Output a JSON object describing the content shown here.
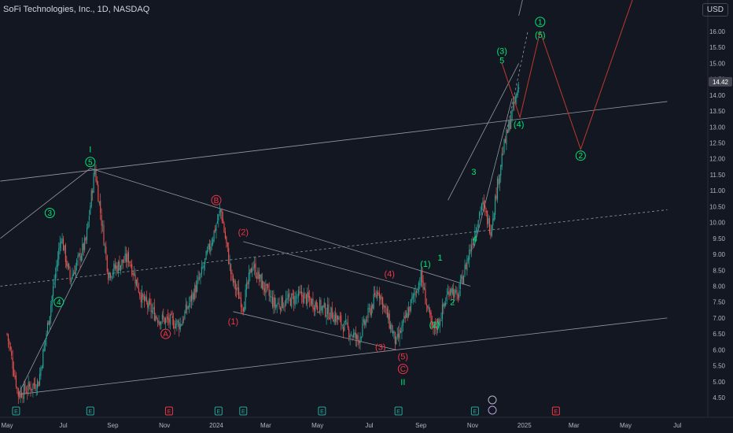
{
  "header": {
    "title": "SoFi Technologies, Inc., 1D, NASDAQ",
    "currency": "USD"
  },
  "colors": {
    "bg": "#131722",
    "up": "#26a69a",
    "down": "#ef5350",
    "green_label": "#00e676",
    "red_label": "#f23645",
    "line": "#9598a1"
  },
  "chart_data": {
    "type": "candlestick",
    "ylim": [
      4.5,
      16.5
    ],
    "yticks": [
      "4.50",
      "5.00",
      "5.50",
      "6.00",
      "6.50",
      "7.00",
      "7.50",
      "8.00",
      "8.50",
      "9.00",
      "9.50",
      "10.00",
      "10.50",
      "11.00",
      "11.50",
      "12.00",
      "12.50",
      "13.00",
      "13.50",
      "14.00",
      "14.50",
      "15.00",
      "15.50",
      "16.00"
    ],
    "yticks_num": [
      4.5,
      5,
      5.5,
      6,
      6.5,
      7,
      7.5,
      8,
      8.5,
      9,
      9.5,
      10,
      10.5,
      11,
      11.5,
      12,
      12.5,
      13,
      13.5,
      14,
      14.5,
      15,
      15.5,
      16
    ],
    "xticks": [
      "May",
      "Jul",
      "Sep",
      "Nov",
      "2024",
      "Mar",
      "May",
      "Jul",
      "Sep",
      "Nov",
      "2025",
      "Mar",
      "May",
      "Jul"
    ],
    "xticks_idx": [
      0,
      50,
      94,
      140,
      186,
      230,
      276,
      322,
      368,
      414,
      460,
      504,
      550,
      596
    ],
    "last_price": "14.42",
    "anchors": [
      [
        0,
        6.5
      ],
      [
        10,
        4.6
      ],
      [
        28,
        5.0
      ],
      [
        38,
        7.2
      ],
      [
        48,
        9.6
      ],
      [
        56,
        8.2
      ],
      [
        70,
        9.4
      ],
      [
        78,
        11.7
      ],
      [
        90,
        8.4
      ],
      [
        108,
        8.9
      ],
      [
        120,
        7.6
      ],
      [
        134,
        7.0
      ],
      [
        154,
        6.8
      ],
      [
        172,
        8.3
      ],
      [
        190,
        10.4
      ],
      [
        200,
        8.2
      ],
      [
        210,
        7.4
      ],
      [
        218,
        8.7
      ],
      [
        226,
        8.1
      ],
      [
        238,
        7.4
      ],
      [
        262,
        7.7
      ],
      [
        290,
        7.1
      ],
      [
        312,
        6.3
      ],
      [
        330,
        7.9
      ],
      [
        346,
        6.2
      ],
      [
        368,
        8.3
      ],
      [
        378,
        6.6
      ],
      [
        384,
        6.9
      ],
      [
        394,
        8.0
      ],
      [
        400,
        7.6
      ],
      [
        412,
        9.2
      ],
      [
        422,
        10.6
      ],
      [
        430,
        9.8
      ],
      [
        440,
        12.1
      ],
      [
        448,
        13.3
      ],
      [
        456,
        14.42
      ]
    ]
  },
  "wave_labels": [
    {
      "text": "I",
      "color": "green",
      "style": "plain",
      "i": 74,
      "p": 12.3
    },
    {
      "text": "5",
      "color": "green",
      "style": "circle",
      "i": 74,
      "p": 11.9
    },
    {
      "text": "3",
      "color": "green",
      "style": "circle",
      "i": 38,
      "p": 10.3
    },
    {
      "text": "4",
      "color": "green",
      "style": "circle",
      "i": 46,
      "p": 7.5
    },
    {
      "text": "B",
      "color": "red",
      "style": "circle",
      "i": 186,
      "p": 10.7
    },
    {
      "text": "(2)",
      "color": "red",
      "style": "plain",
      "i": 210,
      "p": 9.7
    },
    {
      "text": "A",
      "color": "red",
      "style": "circle",
      "i": 141,
      "p": 6.5
    },
    {
      "text": "(1)",
      "color": "red",
      "style": "plain",
      "i": 201,
      "p": 6.9
    },
    {
      "text": "(4)",
      "color": "red",
      "style": "plain",
      "i": 340,
      "p": 8.4
    },
    {
      "text": "(3)",
      "color": "red",
      "style": "plain",
      "i": 332,
      "p": 6.1
    },
    {
      "text": "(5)",
      "color": "red",
      "style": "plain",
      "i": 352,
      "p": 5.8
    },
    {
      "text": "C",
      "color": "red",
      "style": "circle",
      "i": 352,
      "p": 5.4
    },
    {
      "text": "II",
      "color": "green",
      "style": "plain",
      "i": 352,
      "p": 5.0
    },
    {
      "text": "(1)",
      "color": "green",
      "style": "plain",
      "i": 372,
      "p": 8.7
    },
    {
      "text": "1",
      "color": "green",
      "style": "plain",
      "i": 385,
      "p": 8.9
    },
    {
      "text": "2",
      "color": "green",
      "style": "plain",
      "i": 396,
      "p": 7.5
    },
    {
      "text": "(2)",
      "color": "green",
      "style": "plain",
      "i": 380,
      "p": 6.8
    },
    {
      "text": "3",
      "color": "green",
      "style": "plain",
      "i": 415,
      "p": 11.6
    },
    {
      "text": "4",
      "color": "green",
      "style": "plain",
      "i": 416,
      "p": 9.5
    },
    {
      "text": "(3)",
      "color": "green",
      "style": "plain",
      "i": 440,
      "p": 15.4
    },
    {
      "text": "5",
      "color": "green",
      "style": "plain",
      "i": 440,
      "p": 15.1
    },
    {
      "text": "(4)",
      "color": "green",
      "style": "plain",
      "i": 455,
      "p": 13.1
    },
    {
      "text": "1",
      "color": "green",
      "style": "circle",
      "i": 474,
      "p": 16.3
    },
    {
      "text": "(5)",
      "color": "green",
      "style": "plain",
      "i": 474,
      "p": 15.9
    },
    {
      "text": "2",
      "color": "green",
      "style": "circle",
      "i": 510,
      "p": 12.1
    }
  ],
  "projection": [
    [
      440,
      15.0
    ],
    [
      456,
      13.3
    ],
    [
      474,
      16.0
    ],
    [
      510,
      12.3
    ],
    [
      560,
      17.4
    ]
  ],
  "event_markers": [
    {
      "text": "E",
      "i": 8,
      "kind": "earnings"
    },
    {
      "text": "E",
      "i": 74,
      "kind": "earnings"
    },
    {
      "text": "E",
      "i": 144,
      "kind": "earnings-red"
    },
    {
      "text": "E",
      "i": 188,
      "kind": "earnings"
    },
    {
      "text": "E",
      "i": 210,
      "kind": "earnings"
    },
    {
      "text": "E",
      "i": 280,
      "kind": "earnings"
    },
    {
      "text": "E",
      "i": 348,
      "kind": "earnings"
    },
    {
      "text": "E",
      "i": 416,
      "kind": "earnings"
    },
    {
      "text": "E",
      "i": 488,
      "kind": "earnings-red"
    }
  ]
}
